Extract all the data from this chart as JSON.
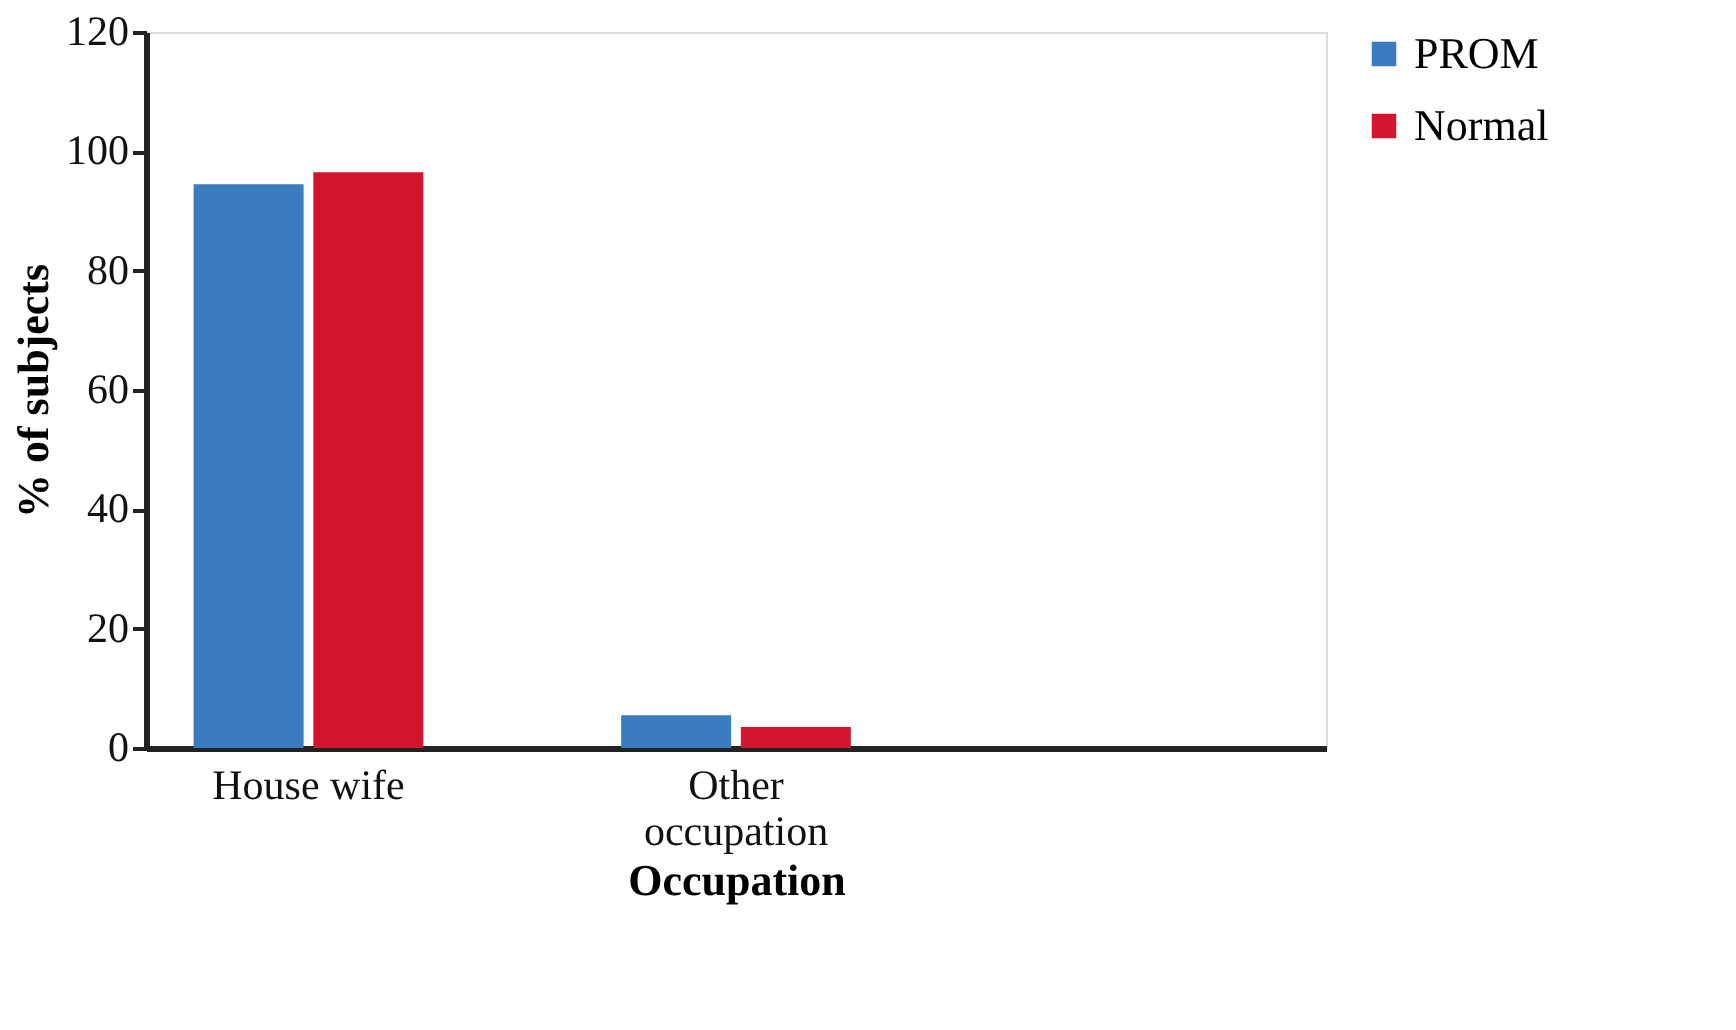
{
  "chart_data": {
    "type": "bar",
    "xlabel": "Occupation",
    "ylabel": "% of subjects",
    "categories": [
      "House wife",
      "Other occupation",
      null
    ],
    "series": [
      {
        "name": "PROM",
        "color": "#3b7bbf",
        "values": [
          94.5,
          5.5,
          null
        ]
      },
      {
        "name": "Normal",
        "color": "#d3152e",
        "values": [
          96.5,
          3.5,
          null
        ]
      }
    ],
    "ylim": [
      0,
      120
    ],
    "yticks": [
      0,
      20,
      40,
      60,
      80,
      100,
      120
    ],
    "grid": false,
    "legend": "right"
  }
}
